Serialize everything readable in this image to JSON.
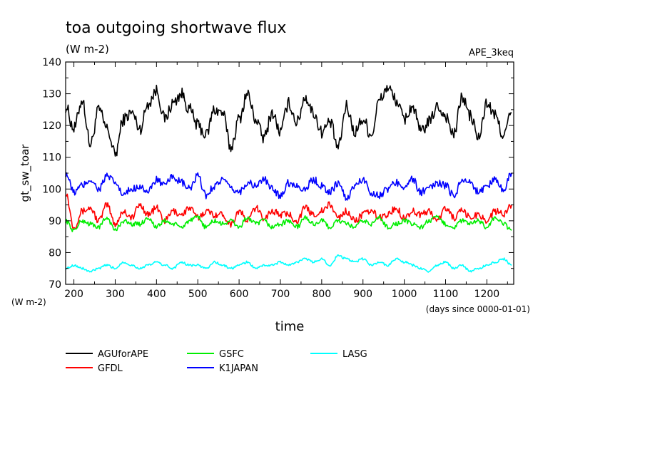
{
  "chart_data": {
    "type": "line",
    "title": "toa outgoing shortwave flux",
    "units": "(W m-2)",
    "tag": "APE_3keq",
    "ylabel": "gt_sw_toar",
    "yunits": "(W m-2)",
    "xlabel": "time",
    "xunits": "(days since 0000-01-01)",
    "xlim": [
      180,
      1265
    ],
    "ylim": [
      70,
      140
    ],
    "xticks": [
      200,
      300,
      400,
      500,
      600,
      700,
      800,
      900,
      1000,
      1100,
      1200
    ],
    "yticks": [
      70,
      80,
      90,
      100,
      110,
      120,
      130,
      140
    ],
    "grid": false,
    "legend_position": "below",
    "series": [
      {
        "name": "AGUforAPE",
        "color": "#000000",
        "x": [
          180,
          200,
          220,
          240,
          260,
          280,
          300,
          320,
          340,
          360,
          380,
          400,
          420,
          440,
          460,
          480,
          500,
          520,
          540,
          560,
          580,
          600,
          620,
          640,
          660,
          680,
          700,
          720,
          740,
          760,
          780,
          800,
          820,
          840,
          860,
          880,
          900,
          920,
          940,
          960,
          980,
          1000,
          1020,
          1040,
          1060,
          1080,
          1100,
          1120,
          1140,
          1160,
          1180,
          1200,
          1220,
          1240,
          1260
        ],
        "values": [
          126,
          119,
          128,
          114,
          125,
          119,
          111,
          122,
          124,
          119,
          127,
          131,
          122,
          127,
          130,
          125,
          120,
          117,
          125,
          124,
          113,
          122,
          130,
          122,
          116,
          124,
          118,
          127,
          121,
          129,
          124,
          118,
          121,
          113,
          126,
          118,
          122,
          117,
          128,
          132,
          128,
          122,
          126,
          118,
          121,
          126,
          123,
          117,
          129,
          123,
          116,
          127,
          123,
          117,
          124
        ]
      },
      {
        "name": "GFDL",
        "color": "#ff0000",
        "x": [
          180,
          200,
          220,
          240,
          260,
          280,
          300,
          320,
          340,
          360,
          380,
          400,
          420,
          440,
          460,
          480,
          500,
          520,
          540,
          560,
          580,
          600,
          620,
          640,
          660,
          680,
          700,
          720,
          740,
          760,
          780,
          800,
          820,
          840,
          860,
          880,
          900,
          920,
          940,
          960,
          980,
          1000,
          1020,
          1040,
          1060,
          1080,
          1100,
          1120,
          1140,
          1160,
          1180,
          1200,
          1220,
          1240,
          1260
        ],
        "values": [
          99,
          88,
          93,
          94,
          90,
          95,
          89,
          93,
          91,
          95,
          92,
          94,
          90,
          93,
          92,
          94,
          91,
          93,
          92,
          92,
          89,
          93,
          90,
          94,
          91,
          93,
          92,
          92,
          90,
          94,
          92,
          93,
          95,
          91,
          93,
          90,
          92,
          93,
          91,
          92,
          94,
          91,
          93,
          92,
          93,
          90,
          94,
          91,
          93,
          91,
          92,
          90,
          93,
          92,
          95
        ]
      },
      {
        "name": "GSFC",
        "color": "#00ee00",
        "x": [
          180,
          200,
          220,
          240,
          260,
          280,
          300,
          320,
          340,
          360,
          380,
          400,
          420,
          440,
          460,
          480,
          500,
          520,
          540,
          560,
          580,
          600,
          620,
          640,
          660,
          680,
          700,
          720,
          740,
          760,
          780,
          800,
          820,
          840,
          860,
          880,
          900,
          920,
          940,
          960,
          980,
          1000,
          1020,
          1040,
          1060,
          1080,
          1100,
          1120,
          1140,
          1160,
          1180,
          1200,
          1220,
          1240,
          1260
        ],
        "values": [
          90,
          87,
          90,
          89,
          88,
          91,
          87,
          90,
          89,
          89,
          91,
          88,
          90,
          89,
          88,
          90,
          91,
          88,
          90,
          89,
          90,
          88,
          91,
          89,
          90,
          88,
          89,
          90,
          88,
          91,
          89,
          90,
          88,
          90,
          89,
          88,
          90,
          89,
          91,
          88,
          89,
          90,
          89,
          88,
          90,
          91,
          89,
          88,
          90,
          89,
          90,
          88,
          91,
          89,
          87
        ]
      },
      {
        "name": "K1JAPAN",
        "color": "#0000ff",
        "x": [
          180,
          200,
          220,
          240,
          260,
          280,
          300,
          320,
          340,
          360,
          380,
          400,
          420,
          440,
          460,
          480,
          500,
          520,
          540,
          560,
          580,
          600,
          620,
          640,
          660,
          680,
          700,
          720,
          740,
          760,
          780,
          800,
          820,
          840,
          860,
          880,
          900,
          920,
          940,
          960,
          980,
          1000,
          1020,
          1040,
          1060,
          1080,
          1100,
          1120,
          1140,
          1160,
          1180,
          1200,
          1220,
          1240,
          1260
        ],
        "values": [
          105,
          99,
          101,
          103,
          100,
          104,
          102,
          98,
          100,
          101,
          99,
          103,
          101,
          104,
          102,
          100,
          104,
          98,
          101,
          103,
          100,
          99,
          102,
          101,
          103,
          100,
          98,
          102,
          101,
          100,
          103,
          101,
          99,
          102,
          97,
          101,
          103,
          99,
          98,
          100,
          102,
          101,
          103,
          99,
          100,
          102,
          101,
          98,
          103,
          102,
          99,
          101,
          103,
          100,
          105
        ]
      },
      {
        "name": "LASG",
        "color": "#00ffff",
        "x": [
          180,
          200,
          220,
          240,
          260,
          280,
          300,
          320,
          340,
          360,
          380,
          400,
          420,
          440,
          460,
          480,
          500,
          520,
          540,
          560,
          580,
          600,
          620,
          640,
          660,
          680,
          700,
          720,
          740,
          760,
          780,
          800,
          820,
          840,
          860,
          880,
          900,
          920,
          940,
          960,
          980,
          1000,
          1020,
          1040,
          1060,
          1080,
          1100,
          1120,
          1140,
          1160,
          1180,
          1200,
          1220,
          1240,
          1260
        ],
        "values": [
          75,
          76,
          75,
          74,
          75,
          76,
          75,
          77,
          76,
          75,
          76,
          77,
          76,
          75,
          77,
          76,
          76,
          75,
          77,
          76,
          75,
          76,
          77,
          75,
          76,
          76,
          77,
          76,
          77,
          78,
          77,
          78,
          76,
          79,
          78,
          77,
          78,
          76,
          77,
          76,
          78,
          77,
          76,
          75,
          74,
          76,
          77,
          75,
          76,
          74,
          75,
          76,
          77,
          78,
          76
        ]
      }
    ]
  }
}
